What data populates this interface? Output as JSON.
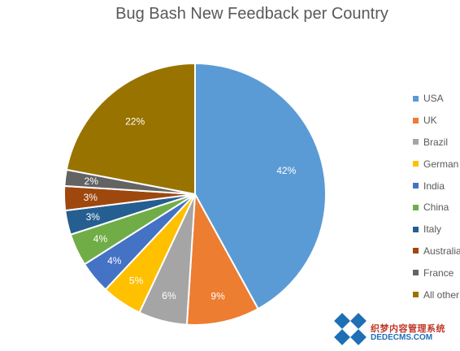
{
  "chart_data": {
    "type": "pie",
    "title": "Bug Bash New Feedback per Country",
    "legend_position": "right",
    "categories": [
      "USA",
      "UK",
      "Brazil",
      "German",
      "India",
      "China",
      "Italy",
      "Australia",
      "France",
      "All other"
    ],
    "values": [
      42,
      9,
      6,
      5,
      4,
      4,
      3,
      3,
      2,
      22
    ],
    "labels": [
      "42%",
      "9%",
      "6%",
      "5%",
      "4%",
      "4%",
      "3%",
      "3%",
      "2%",
      "22%"
    ],
    "colors": [
      "#5b9bd5",
      "#ed7d31",
      "#a5a5a5",
      "#ffc000",
      "#4472c4",
      "#70ad47",
      "#255e91",
      "#9e480e",
      "#636363",
      "#997300"
    ]
  },
  "watermark": {
    "text": "织梦内容管理系统",
    "sub": "DEDECMS.COM"
  }
}
